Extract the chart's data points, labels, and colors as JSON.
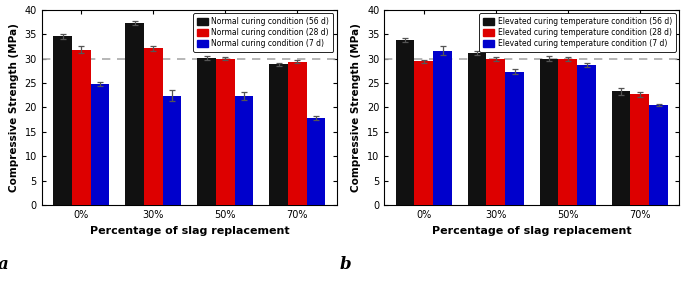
{
  "chart_a": {
    "categories": [
      "0%",
      "30%",
      "50%",
      "70%"
    ],
    "series": [
      {
        "label": "Normal curing condition (56 d)",
        "color": "#111111",
        "values": [
          34.5,
          37.2,
          30.1,
          28.8
        ],
        "errors": [
          0.5,
          0.4,
          0.4,
          0.3
        ]
      },
      {
        "label": "Normal curing condition (28 d)",
        "color": "#dd0000",
        "values": [
          31.8,
          32.1,
          30.0,
          29.3
        ],
        "errors": [
          0.7,
          0.5,
          0.4,
          0.3
        ]
      },
      {
        "label": "Normal curing condition (7 d)",
        "color": "#0000cc",
        "values": [
          24.8,
          22.4,
          22.3,
          17.8
        ],
        "errors": [
          0.5,
          1.1,
          0.8,
          0.4
        ]
      }
    ],
    "ylabel": "Compressive Strength (MPa)",
    "xlabel": "Percentage of slag replacement",
    "ylim": [
      0,
      40
    ],
    "yticks": [
      0,
      5,
      10,
      15,
      20,
      25,
      30,
      35,
      40
    ],
    "dashed_line": 30,
    "panel_label": "a"
  },
  "chart_b": {
    "categories": [
      "0%",
      "30%",
      "50%",
      "70%"
    ],
    "series": [
      {
        "label": "Elevated curing temperature condition (56 d)",
        "color": "#111111",
        "values": [
          33.8,
          31.1,
          30.0,
          23.3
        ],
        "errors": [
          0.4,
          0.4,
          0.5,
          0.7
        ]
      },
      {
        "label": "Elevated curing temperature condition (28 d)",
        "color": "#dd0000",
        "values": [
          29.4,
          29.9,
          29.9,
          22.7
        ],
        "errors": [
          0.3,
          0.4,
          0.4,
          0.5
        ]
      },
      {
        "label": "Elevated curing temperature condition (7 d)",
        "color": "#0000cc",
        "values": [
          31.6,
          27.3,
          28.6,
          20.5
        ],
        "errors": [
          0.9,
          0.5,
          0.4,
          0.3
        ]
      }
    ],
    "ylabel": "Compressive Strength (MPa)",
    "xlabel": "Percentage of slag replacement",
    "ylim": [
      0,
      40
    ],
    "yticks": [
      0,
      5,
      10,
      15,
      20,
      25,
      30,
      35,
      40
    ],
    "dashed_line": 30,
    "panel_label": "b"
  },
  "background_color": "#ffffff",
  "bar_width": 0.26,
  "legend_fontsize": 5.5,
  "axis_label_fontsize": 8,
  "tick_fontsize": 7,
  "panel_label_fontsize": 12
}
